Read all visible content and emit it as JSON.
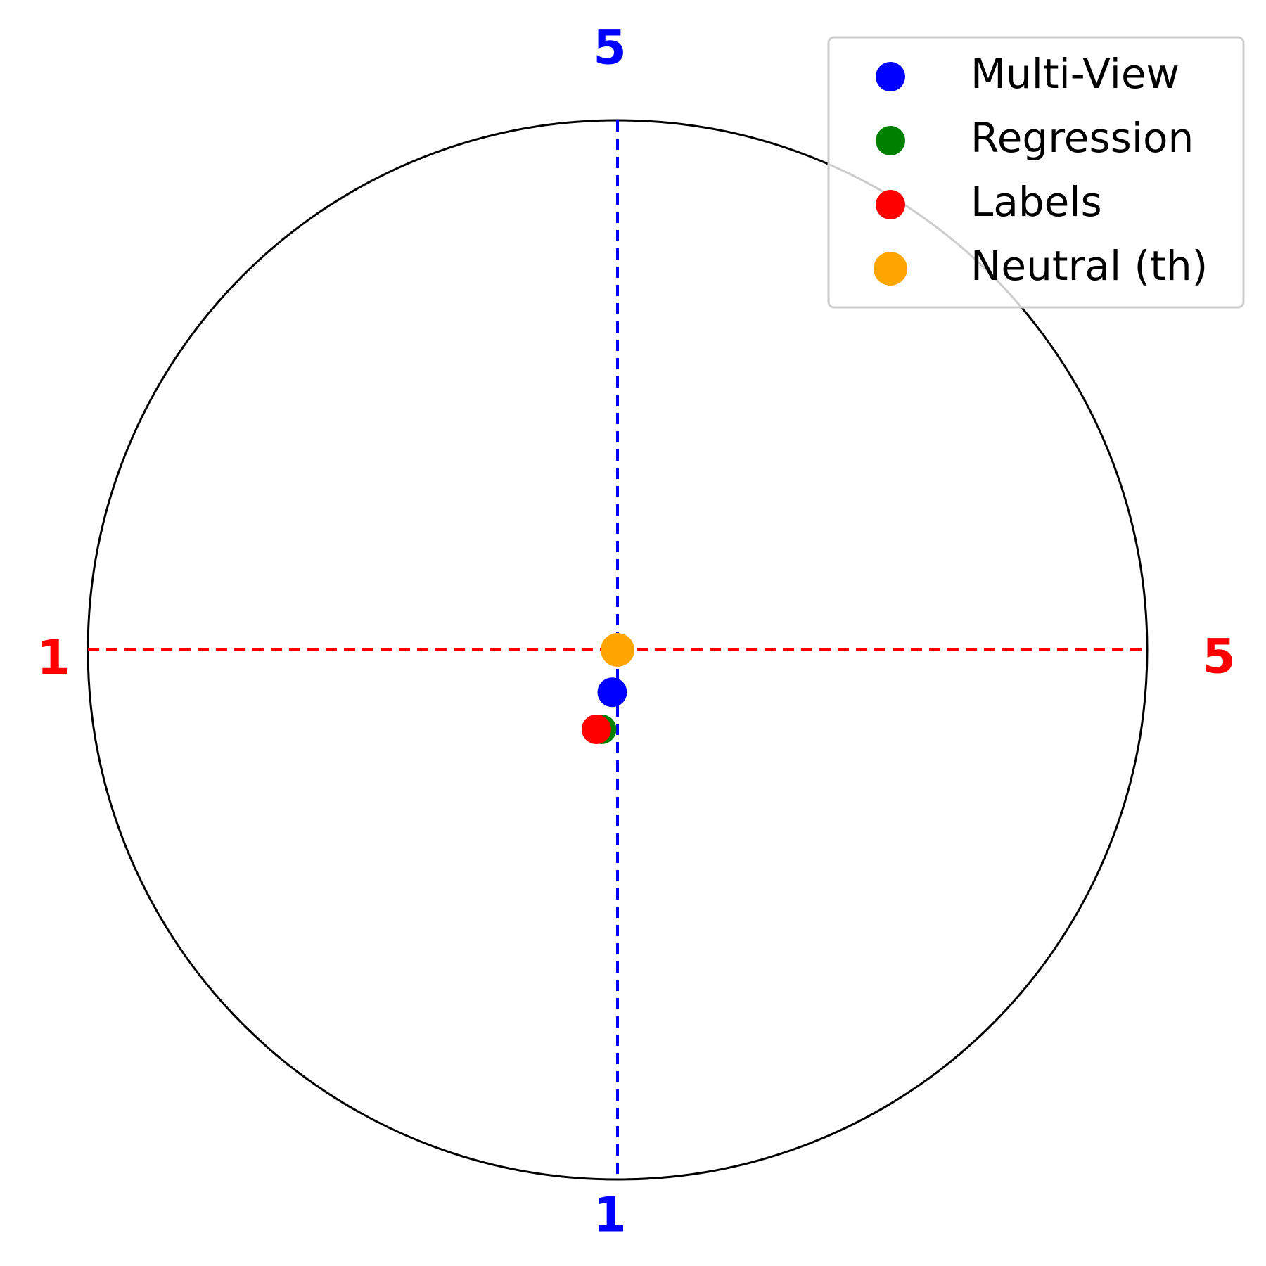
{
  "chart_data": {
    "type": "scatter",
    "title": "",
    "x_axis": {
      "min": 1,
      "max": 5,
      "min_label": "1",
      "max_label": "5",
      "color": "#ff0000"
    },
    "y_axis": {
      "min": 1,
      "max": 5,
      "min_label": "1",
      "max_label": "5",
      "color": "#0000ff"
    },
    "boundary": "circle",
    "legend_position": "top-right",
    "series": [
      {
        "name": "Multi-View",
        "color": "#0000ff",
        "x": 2.98,
        "y": 2.84
      },
      {
        "name": "Regression",
        "color": "#008000",
        "x": 2.94,
        "y": 2.7
      },
      {
        "name": "Labels",
        "color": "#ff0000",
        "x": 2.92,
        "y": 2.7
      },
      {
        "name": "Neutral (th)",
        "color": "#ffa500",
        "x": 3.0,
        "y": 3.0
      }
    ]
  }
}
